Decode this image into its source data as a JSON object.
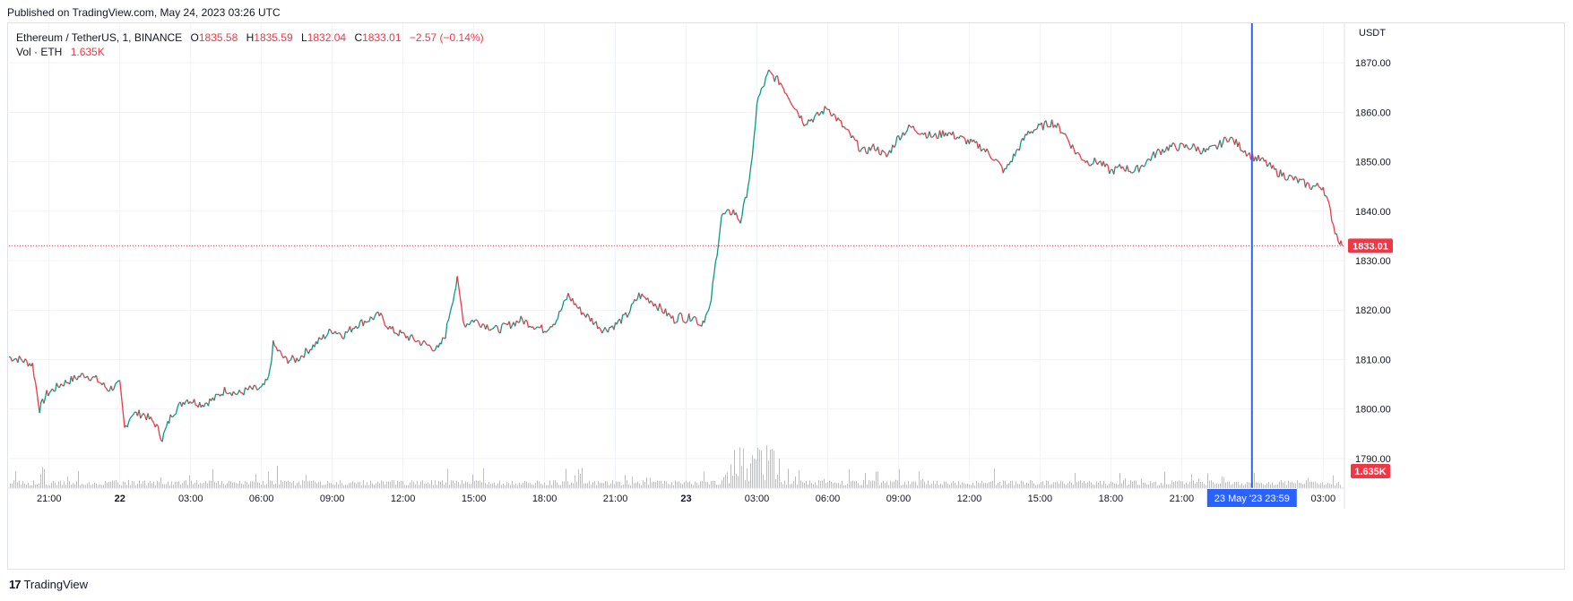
{
  "header": {
    "published": "Published on TradingView.com, May 24, 2023 03:26 UTC"
  },
  "legend": {
    "symbol": "Ethereum / TetherUS, 1, BINANCE",
    "o_label": "O",
    "o_value": "1835.58",
    "h_label": "H",
    "h_value": "1835.59",
    "l_label": "L",
    "l_value": "1832.04",
    "c_label": "C",
    "c_value": "1833.01",
    "change": "−2.57 (−0.14%)",
    "vol_label": "Vol · ETH",
    "vol_value": "1.635K"
  },
  "footer": {
    "brand": "TradingView",
    "logo": "17"
  },
  "colors": {
    "up": "#089981",
    "down": "#f23645",
    "crosshair": "#2962ff",
    "grid": "#f0f3fa",
    "up_vol": "#8fd0c5",
    "down_vol": "#f7a9a7"
  },
  "chart_data": {
    "type": "line",
    "title": "Ethereum / TetherUS, 1, BINANCE",
    "ylabel": "USDT",
    "ylim": [
      1784,
      1878
    ],
    "y_ticks": [
      "1790.00",
      "1800.00",
      "1810.00",
      "1820.00",
      "1830.00",
      "1840.00",
      "1850.00",
      "1860.00",
      "1870.00"
    ],
    "y_tick_values": [
      1790,
      1800,
      1810,
      1820,
      1830,
      1840,
      1850,
      1860,
      1870
    ],
    "x_ticks": [
      "21:00",
      "22",
      "03:00",
      "06:00",
      "09:00",
      "12:00",
      "15:00",
      "18:00",
      "21:00",
      "23",
      "03:00",
      "06:00",
      "09:00",
      "12:00",
      "15:00",
      "18:00",
      "21:00",
      "03:00"
    ],
    "x_tick_hours": [
      21,
      24,
      27,
      30,
      33,
      36,
      39,
      42,
      45,
      48,
      51,
      54,
      57,
      60,
      63,
      66,
      69,
      75
    ],
    "x_range_hours": [
      19.3,
      75.9
    ],
    "series": [
      {
        "values_x_hours": [
          19.3,
          19.8,
          20.3,
          20.6,
          20.9,
          21.5,
          22.0,
          22.5,
          23.0,
          23.5,
          24.0,
          24.2,
          24.5,
          25.0,
          25.5,
          25.8,
          26.2,
          26.8,
          27.5,
          28.0,
          28.5,
          29.0,
          29.5,
          30.0,
          30.3,
          30.5,
          31.0,
          31.5,
          32.0,
          32.5,
          33.0,
          33.5,
          34.0,
          34.5,
          35.0,
          35.5,
          36.0,
          36.5,
          37.0,
          37.5,
          37.8,
          38.0,
          38.3,
          38.6,
          39.0,
          39.5,
          40.0,
          40.5,
          41.0,
          41.5,
          42.0,
          42.5,
          43.0,
          43.5,
          44.0,
          44.5,
          45.0,
          45.5,
          46.0,
          46.5,
          47.0,
          47.5,
          47.8,
          48.0,
          48.3,
          48.6,
          49.0,
          49.5,
          50.0,
          50.3,
          50.5,
          50.8,
          51.0,
          51.5,
          52.0,
          52.5,
          53.0,
          53.5,
          54.0,
          54.5,
          55.0,
          55.5,
          56.0,
          56.5,
          57.0,
          57.5,
          58.0,
          58.5,
          59.0,
          59.5,
          60.0,
          60.5,
          61.0,
          61.5,
          62.0,
          62.5,
          63.0,
          63.5,
          64.0,
          64.5,
          65.0,
          65.5,
          66.0,
          66.5,
          67.0,
          67.5,
          68.0,
          68.5,
          69.0,
          69.5,
          70.0,
          70.5,
          71.0,
          71.5,
          72.0,
          72.5,
          73.0,
          73.5,
          74.0,
          74.5,
          75.0,
          75.3,
          75.5,
          75.7,
          75.8
        ],
        "values_y": [
          1810.5,
          1810,
          1809,
          1800,
          1803,
          1805,
          1806,
          1807,
          1806,
          1804,
          1805,
          1796,
          1799,
          1799,
          1797,
          1794,
          1799,
          1802,
          1801,
          1802,
          1804,
          1803,
          1804,
          1804,
          1806,
          1813,
          1810,
          1810,
          1812,
          1814,
          1816,
          1815,
          1817,
          1818,
          1819,
          1816,
          1815,
          1814,
          1813,
          1812,
          1815,
          1820,
          1826,
          1817,
          1818,
          1817,
          1816,
          1817,
          1818,
          1817,
          1816,
          1818,
          1823,
          1820,
          1818,
          1816,
          1817,
          1819,
          1823,
          1822,
          1820,
          1818,
          1819,
          1818,
          1819,
          1817,
          1820,
          1839,
          1840,
          1838,
          1842,
          1850,
          1862,
          1868,
          1866,
          1862,
          1858,
          1859,
          1861,
          1858,
          1855,
          1852,
          1853,
          1851,
          1855,
          1857,
          1856,
          1855,
          1856,
          1855,
          1854,
          1853,
          1851,
          1848,
          1852,
          1856,
          1857,
          1858,
          1856,
          1852,
          1850,
          1850,
          1848,
          1849,
          1848,
          1850,
          1852,
          1853,
          1853,
          1853,
          1852,
          1853,
          1855,
          1853,
          1851,
          1850,
          1848,
          1847,
          1846,
          1845,
          1845,
          1840,
          1836,
          1834,
          1833.01
        ]
      }
    ],
    "volume_unit": "ETH",
    "last_price": "1833.01",
    "last_volume": "1.635K",
    "crosshair_label": "23 May '23   23:59",
    "crosshair_x_hours": 71.98
  }
}
